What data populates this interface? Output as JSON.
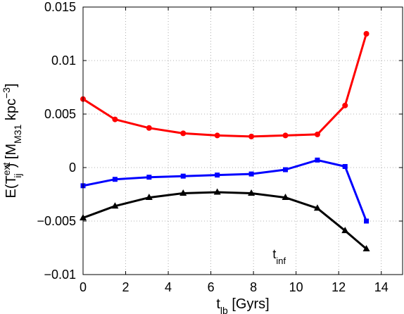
{
  "chart_data": {
    "type": "line",
    "xlabel": {
      "base": "t",
      "sub": "lb",
      "rest": " [Gyrs]"
    },
    "ylabel": {
      "pre": "E(T",
      "sup": "ext",
      "sub": "ij",
      "mid": ") [M",
      "sub2": "M31",
      "mid2": " kpc",
      "sup2": "−3",
      "post": "]"
    },
    "xlim": [
      0,
      15
    ],
    "ylim": [
      -0.01,
      0.015
    ],
    "xticks": [
      0,
      2,
      4,
      6,
      8,
      10,
      12,
      14
    ],
    "yticks": [
      -0.01,
      -0.005,
      0,
      0.005,
      0.01,
      0.015
    ],
    "xtick_labels": [
      "0",
      "2",
      "4",
      "6",
      "8",
      "10",
      "12",
      "14"
    ],
    "ytick_labels": [
      "−0.01",
      "−0.005",
      "0",
      "0.005",
      "0.01",
      "0.015"
    ],
    "grid": true,
    "annotation": {
      "base": "t",
      "sub": "inf",
      "x": 8.9,
      "y": -0.0085
    },
    "series": [
      {
        "color": "#ff0000",
        "marker": "circle",
        "x": [
          0,
          1.5,
          3.1,
          4.7,
          6.3,
          7.9,
          9.5,
          11.0,
          12.3,
          13.3
        ],
        "y": [
          0.0064,
          0.0045,
          0.0037,
          0.0032,
          0.003,
          0.0029,
          0.003,
          0.0031,
          0.0058,
          0.0125
        ]
      },
      {
        "color": "#0000ff",
        "marker": "square",
        "x": [
          0,
          1.5,
          3.1,
          4.7,
          6.3,
          7.9,
          9.5,
          11.0,
          12.3,
          13.3
        ],
        "y": [
          -0.0017,
          -0.0011,
          -0.0009,
          -0.0008,
          -0.0007,
          -0.0006,
          -0.0002,
          0.0007,
          0.0001,
          -0.005
        ]
      },
      {
        "color": "#000000",
        "marker": "triangle",
        "x": [
          0,
          1.5,
          3.1,
          4.7,
          6.3,
          7.9,
          9.5,
          11.0,
          12.3,
          13.3
        ],
        "y": [
          -0.0047,
          -0.0036,
          -0.0028,
          -0.0024,
          -0.0023,
          -0.0024,
          -0.0028,
          -0.0038,
          -0.0059,
          -0.0076
        ]
      }
    ]
  }
}
